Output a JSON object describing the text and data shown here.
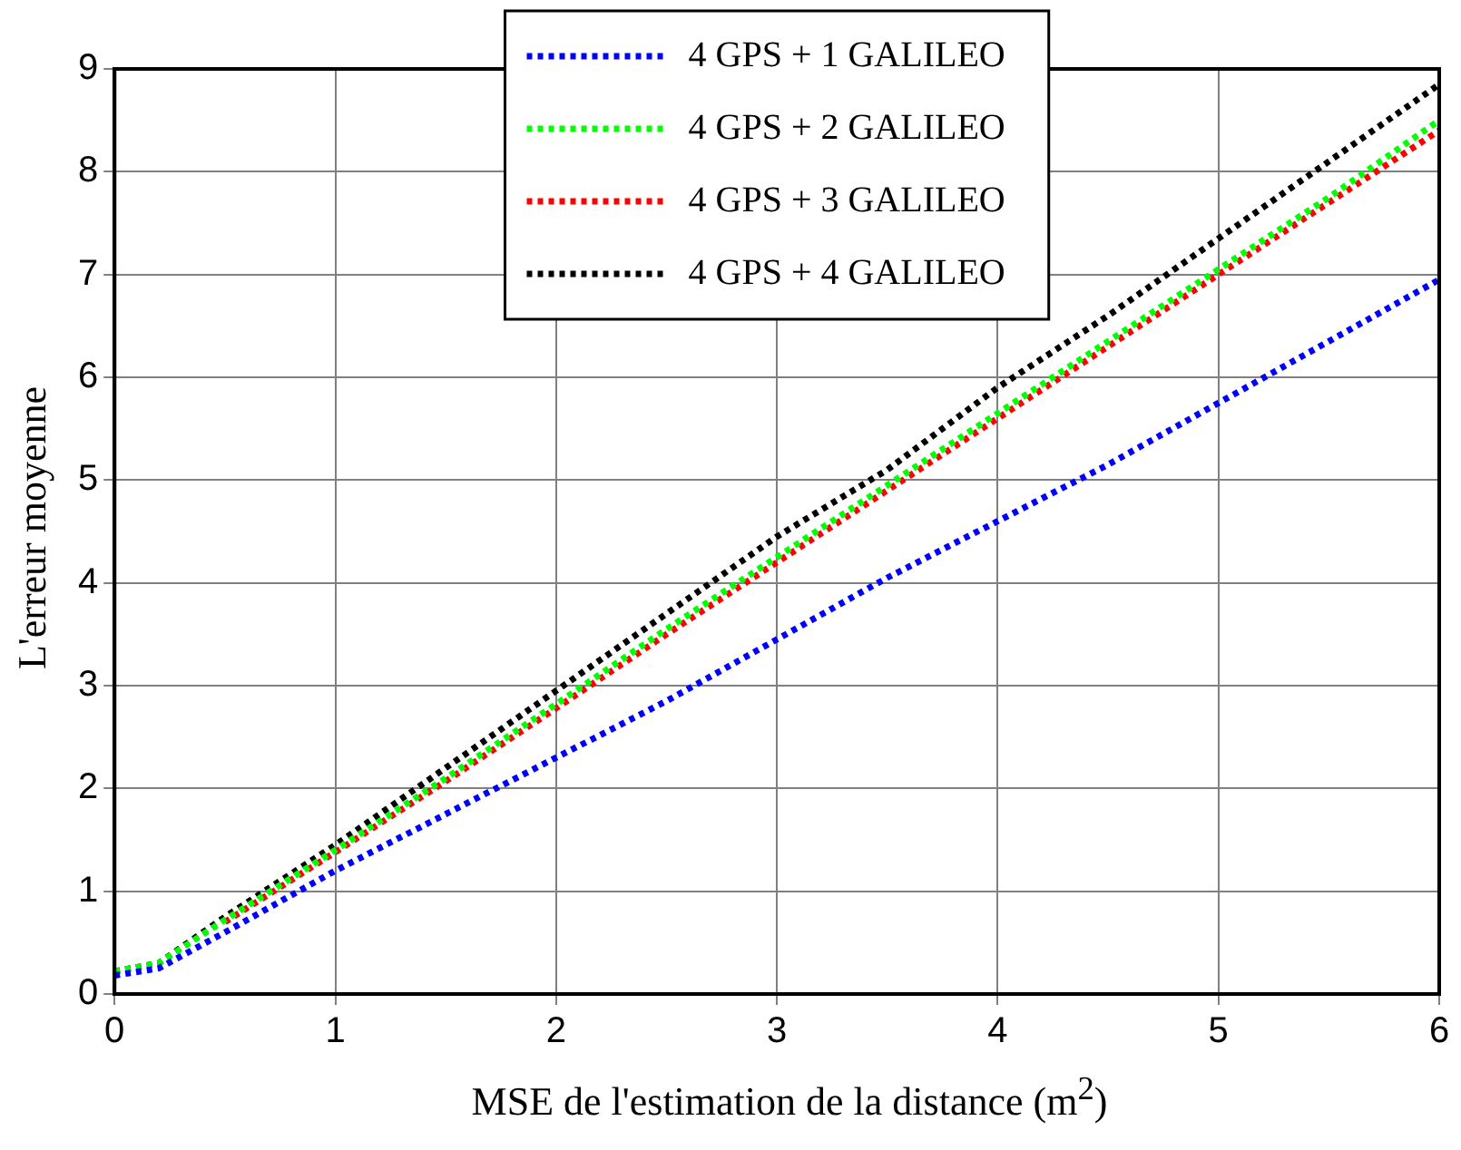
{
  "chart_data": {
    "type": "line",
    "xlabel": "MSE de l'estimation de la distance (m$^{2}$)",
    "ylabel": "L'erreur moyenne",
    "x": [
      0,
      0.2,
      0.5,
      1,
      1.5,
      2,
      2.5,
      3,
      3.5,
      4,
      4.5,
      5,
      5.5,
      6
    ],
    "series": [
      {
        "name": "4 GPS + 1 GALILEO",
        "color": "#0000ff",
        "values": [
          0.18,
          0.25,
          0.6,
          1.2,
          1.75,
          2.3,
          2.85,
          3.45,
          4.05,
          4.6,
          5.15,
          5.75,
          6.35,
          6.95
        ]
      },
      {
        "name": "4 GPS + 2 GALILEO",
        "color": "#00ff00",
        "values": [
          0.22,
          0.3,
          0.72,
          1.4,
          2.1,
          2.82,
          3.55,
          4.25,
          4.95,
          5.65,
          6.35,
          7.05,
          7.75,
          8.5
        ]
      },
      {
        "name": "4 GPS + 3 GALILEO",
        "color": "#ff0000",
        "values": [
          null,
          null,
          0.7,
          1.38,
          2.07,
          2.78,
          3.5,
          4.2,
          4.9,
          5.6,
          6.3,
          7.0,
          7.7,
          8.4
        ]
      },
      {
        "name": "4 GPS + 4 GALILEO",
        "color": "#000000",
        "values": [
          0.22,
          0.3,
          0.75,
          1.45,
          2.2,
          2.95,
          3.7,
          4.45,
          5.1,
          5.9,
          6.6,
          7.35,
          8.1,
          8.85
        ]
      }
    ],
    "xlim": [
      0,
      6
    ],
    "xticks": [
      0,
      1,
      2,
      3,
      4,
      5,
      6
    ],
    "ylim": [
      0,
      9
    ],
    "yticks": [
      0,
      1,
      2,
      3,
      4,
      5,
      6,
      7,
      8,
      9
    ],
    "grid": true,
    "legend": "top",
    "line_style": "dotted",
    "marker": "none"
  }
}
